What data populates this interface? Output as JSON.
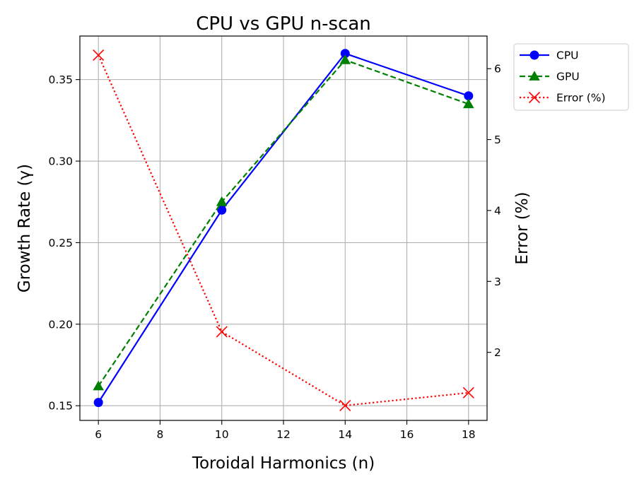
{
  "chart_data": {
    "type": "line",
    "title": "CPU vs GPU n-scan",
    "xlabel": "Toroidal Harmonics (n)",
    "ylabel": "Growth Rate (γ)",
    "y2label": "Error (%)",
    "xlim": [
      5.4,
      18.6
    ],
    "ylim": [
      0.141,
      0.3767
    ],
    "y2lim": [
      1.04,
      6.46
    ],
    "xticks": [
      6,
      8,
      10,
      12,
      14,
      16,
      18
    ],
    "yticks": [
      0.15,
      0.2,
      0.25,
      0.3,
      0.35
    ],
    "ytick_labels": [
      "0.15",
      "0.20",
      "0.25",
      "0.30",
      "0.35"
    ],
    "y2ticks": [
      2,
      3,
      4,
      5,
      6
    ],
    "grid": true,
    "legend_position": "outside-top-right",
    "x": [
      6,
      10,
      14,
      18
    ],
    "series": [
      {
        "name": "CPU",
        "axis": "left",
        "color": "#0000ff",
        "marker": "circle",
        "linestyle": "solid",
        "values": [
          0.152,
          0.27,
          0.366,
          0.34
        ]
      },
      {
        "name": "GPU",
        "axis": "left",
        "color": "#008000",
        "marker": "triangle",
        "linestyle": "dashed",
        "values": [
          0.162,
          0.275,
          0.362,
          0.335
        ]
      },
      {
        "name": "Error (%)",
        "axis": "right",
        "color": "#ff0000",
        "marker": "x",
        "linestyle": "dotted",
        "values": [
          6.19,
          2.29,
          1.25,
          1.43
        ]
      }
    ]
  }
}
